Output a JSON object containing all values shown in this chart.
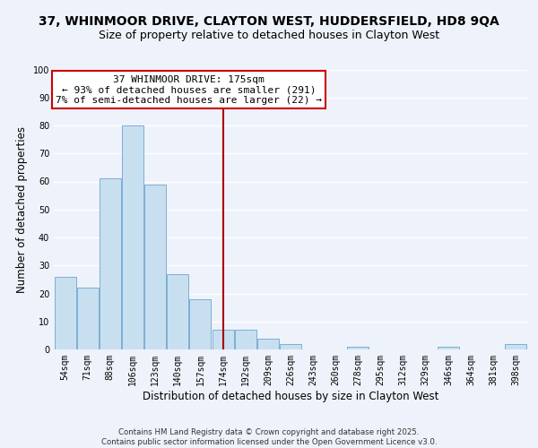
{
  "title": "37, WHINMOOR DRIVE, CLAYTON WEST, HUDDERSFIELD, HD8 9QA",
  "subtitle": "Size of property relative to detached houses in Clayton West",
  "xlabel": "Distribution of detached houses by size in Clayton West",
  "ylabel": "Number of detached properties",
  "categories": [
    "54sqm",
    "71sqm",
    "88sqm",
    "106sqm",
    "123sqm",
    "140sqm",
    "157sqm",
    "174sqm",
    "192sqm",
    "209sqm",
    "226sqm",
    "243sqm",
    "260sqm",
    "278sqm",
    "295sqm",
    "312sqm",
    "329sqm",
    "346sqm",
    "364sqm",
    "381sqm",
    "398sqm"
  ],
  "values": [
    26,
    22,
    61,
    80,
    59,
    27,
    18,
    7,
    7,
    4,
    2,
    0,
    0,
    1,
    0,
    0,
    0,
    1,
    0,
    0,
    2
  ],
  "bar_color": "#c8dff0",
  "bar_edge_color": "#7bafd4",
  "background_color": "#eef2fa",
  "grid_color": "#ffffff",
  "ylim": [
    0,
    100
  ],
  "vline_x": 7,
  "vline_color": "#aa0000",
  "annotation_title": "37 WHINMOOR DRIVE: 175sqm",
  "annotation_line1": "← 93% of detached houses are smaller (291)",
  "annotation_line2": "7% of semi-detached houses are larger (22) →",
  "annotation_box_color": "#ffffff",
  "annotation_box_edge": "#cc0000",
  "footer_line1": "Contains HM Land Registry data © Crown copyright and database right 2025.",
  "footer_line2": "Contains public sector information licensed under the Open Government Licence v3.0.",
  "title_fontsize": 10,
  "subtitle_fontsize": 9,
  "axis_label_fontsize": 8.5,
  "tick_fontsize": 7,
  "annotation_fontsize": 8
}
